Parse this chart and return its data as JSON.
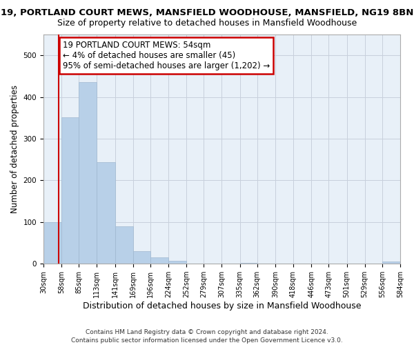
{
  "title": "19, PORTLAND COURT MEWS, MANSFIELD WOODHOUSE, MANSFIELD, NG19 8BN",
  "subtitle": "Size of property relative to detached houses in Mansfield Woodhouse",
  "xlabel": "Distribution of detached houses by size in Mansfield Woodhouse",
  "ylabel": "Number of detached properties",
  "footer_line1": "Contains HM Land Registry data © Crown copyright and database right 2024.",
  "footer_line2": "Contains public sector information licensed under the Open Government Licence v3.0.",
  "bar_edges": [
    30,
    58,
    85,
    113,
    141,
    169,
    196,
    224,
    252,
    279,
    307,
    335,
    362,
    390,
    418,
    446,
    473,
    501,
    529,
    556,
    584
  ],
  "bar_heights": [
    100,
    352,
    435,
    243,
    90,
    30,
    15,
    7,
    0,
    0,
    0,
    2,
    0,
    0,
    0,
    0,
    0,
    0,
    0,
    5
  ],
  "bar_color": "#b8d0e8",
  "bar_edge_color": "#a0b8d0",
  "property_line_x": 54,
  "property_line_color": "#cc0000",
  "annotation_line1": "19 PORTLAND COURT MEWS: 54sqm",
  "annotation_line2": "← 4% of detached houses are smaller (45)",
  "annotation_line3": "95% of semi-detached houses are larger (1,202) →",
  "annotation_box_color": "#ffffff",
  "annotation_box_edge": "#cc0000",
  "ylim": [
    0,
    550
  ],
  "tick_labels": [
    "30sqm",
    "58sqm",
    "85sqm",
    "113sqm",
    "141sqm",
    "169sqm",
    "196sqm",
    "224sqm",
    "252sqm",
    "279sqm",
    "307sqm",
    "335sqm",
    "362sqm",
    "390sqm",
    "418sqm",
    "446sqm",
    "473sqm",
    "501sqm",
    "529sqm",
    "556sqm",
    "584sqm"
  ],
  "title_fontsize": 9.5,
  "subtitle_fontsize": 9,
  "xlabel_fontsize": 9,
  "ylabel_fontsize": 8.5,
  "tick_fontsize": 7,
  "annotation_fontsize": 8.5,
  "footer_fontsize": 6.5,
  "bg_color": "#e8f0f8",
  "grid_color": "#c8d0dc"
}
